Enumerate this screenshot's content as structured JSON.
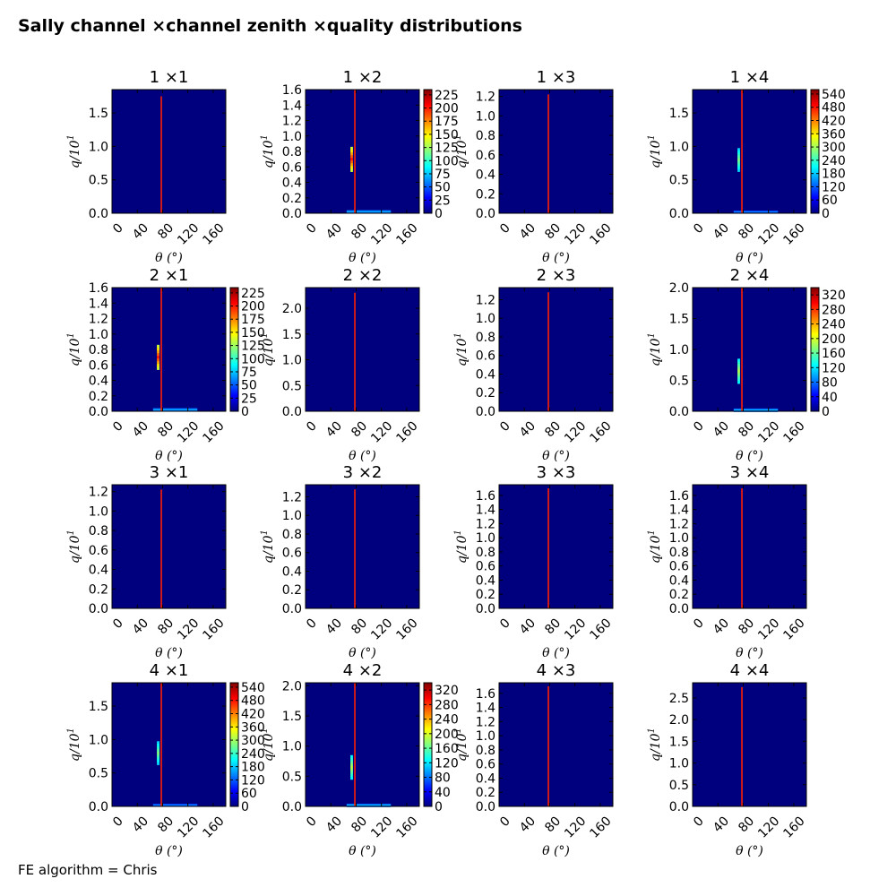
{
  "figure": {
    "title": "Sally channel ×channel zenith ×quality distributions",
    "footnote": "FE algorithm = Chris"
  },
  "colors": {
    "background": "#00007f",
    "line": "#ff2000",
    "colormap": [
      "#00007f",
      "#0000ff",
      "#0080ff",
      "#00ffff",
      "#80ff80",
      "#ffff00",
      "#ff8000",
      "#ff0000",
      "#7f0000"
    ]
  },
  "chart_data": [
    {
      "type": "heatmap",
      "title": "1 ×1",
      "xlabel": "θ (°)",
      "ylabel": "q/10^1",
      "xlim": [
        0,
        180
      ],
      "xticks": [
        "0",
        "40",
        "80",
        "120",
        "160"
      ],
      "ylim": [
        0,
        1.85
      ],
      "yticks": [
        "0.0",
        "0.5",
        "1.0",
        "1.5"
      ],
      "line_x": 78,
      "line_top": 1.75,
      "colorbar": null,
      "blobs": []
    },
    {
      "type": "heatmap",
      "title": "1 ×2",
      "xlabel": "θ (°)",
      "ylabel": "q/10^1",
      "xlim": [
        0,
        180
      ],
      "xticks": [
        "0",
        "40",
        "80",
        "120",
        "160"
      ],
      "ylim": [
        0,
        1.6
      ],
      "yticks": [
        "0.0",
        "0.2",
        "0.4",
        "0.6",
        "0.8",
        "1.0",
        "1.2",
        "1.4",
        "1.6"
      ],
      "line_x": 78,
      "line_top": 1.6,
      "colorbar": {
        "ticks": [
          "0",
          "25",
          "50",
          "75",
          "100",
          "125",
          "150",
          "175",
          "200",
          "225"
        ],
        "max": 235
      },
      "blobs": [
        {
          "x": 73,
          "y": 0.7,
          "w": 4,
          "h": 0.32,
          "v": 0.85
        },
        {
          "x": 100,
          "y": 0.02,
          "w": 70,
          "h": 0.04,
          "v": 0.3
        }
      ]
    },
    {
      "type": "heatmap",
      "title": "1 ×3",
      "xlabel": "θ (°)",
      "ylabel": "q/10^1",
      "xlim": [
        0,
        180
      ],
      "xticks": [
        "0",
        "40",
        "80",
        "120",
        "160"
      ],
      "ylim": [
        0,
        1.27
      ],
      "yticks": [
        "0.0",
        "0.2",
        "0.4",
        "0.6",
        "0.8",
        "1.0",
        "1.2"
      ],
      "line_x": 78,
      "line_top": 1.22,
      "colorbar": null,
      "blobs": []
    },
    {
      "type": "heatmap",
      "title": "1 ×4",
      "xlabel": "θ (°)",
      "ylabel": "q/10^1",
      "xlim": [
        0,
        180
      ],
      "xticks": [
        "0",
        "40",
        "80",
        "120",
        "160"
      ],
      "ylim": [
        0,
        1.85
      ],
      "yticks": [
        "0.0",
        "0.5",
        "1.0",
        "1.5"
      ],
      "line_x": 78,
      "line_top": 1.85,
      "colorbar": {
        "ticks": [
          "0",
          "60",
          "120",
          "180",
          "240",
          "300",
          "360",
          "420",
          "480",
          "540"
        ],
        "max": 560
      },
      "blobs": [
        {
          "x": 73,
          "y": 0.8,
          "w": 4,
          "h": 0.35,
          "v": 0.5
        },
        {
          "x": 100,
          "y": 0.02,
          "w": 70,
          "h": 0.04,
          "v": 0.25
        }
      ]
    },
    {
      "type": "heatmap",
      "title": "2 ×1",
      "xlabel": "θ (°)",
      "ylabel": "q/10^1",
      "xlim": [
        0,
        180
      ],
      "xticks": [
        "0",
        "40",
        "80",
        "120",
        "160"
      ],
      "ylim": [
        0,
        1.6
      ],
      "yticks": [
        "0.0",
        "0.2",
        "0.4",
        "0.6",
        "0.8",
        "1.0",
        "1.2",
        "1.4",
        "1.6"
      ],
      "line_x": 78,
      "line_top": 1.6,
      "colorbar": {
        "ticks": [
          "0",
          "25",
          "50",
          "75",
          "100",
          "125",
          "150",
          "175",
          "200",
          "225"
        ],
        "max": 235
      },
      "blobs": [
        {
          "x": 73,
          "y": 0.7,
          "w": 4,
          "h": 0.32,
          "v": 0.85
        },
        {
          "x": 100,
          "y": 0.02,
          "w": 70,
          "h": 0.04,
          "v": 0.3
        }
      ]
    },
    {
      "type": "heatmap",
      "title": "2 ×2",
      "xlabel": "θ (°)",
      "ylabel": "q/10^1",
      "xlim": [
        0,
        180
      ],
      "xticks": [
        "0",
        "40",
        "80",
        "120",
        "160"
      ],
      "ylim": [
        0,
        2.4
      ],
      "yticks": [
        "0.0",
        "0.5",
        "1.0",
        "1.5",
        "2.0"
      ],
      "line_x": 78,
      "line_top": 2.3,
      "colorbar": null,
      "blobs": []
    },
    {
      "type": "heatmap",
      "title": "2 ×3",
      "xlabel": "θ (°)",
      "ylabel": "q/10^1",
      "xlim": [
        0,
        180
      ],
      "xticks": [
        "0",
        "40",
        "80",
        "120",
        "160"
      ],
      "ylim": [
        0,
        1.33
      ],
      "yticks": [
        "0.0",
        "0.2",
        "0.4",
        "0.6",
        "0.8",
        "1.0",
        "1.2"
      ],
      "line_x": 78,
      "line_top": 1.28,
      "colorbar": null,
      "blobs": []
    },
    {
      "type": "heatmap",
      "title": "2 ×4",
      "xlabel": "θ (°)",
      "ylabel": "q/10^1",
      "xlim": [
        0,
        180
      ],
      "xticks": [
        "0",
        "40",
        "80",
        "120",
        "160"
      ],
      "ylim": [
        0,
        2.0
      ],
      "yticks": [
        "0.0",
        "0.5",
        "1.0",
        "1.5",
        "2.0"
      ],
      "line_x": 78,
      "line_top": 2.0,
      "colorbar": {
        "ticks": [
          "0",
          "40",
          "80",
          "120",
          "160",
          "200",
          "240",
          "280",
          "320"
        ],
        "max": 340
      },
      "blobs": [
        {
          "x": 73,
          "y": 0.65,
          "w": 4,
          "h": 0.4,
          "v": 0.55
        },
        {
          "x": 100,
          "y": 0.02,
          "w": 70,
          "h": 0.05,
          "v": 0.3
        }
      ]
    },
    {
      "type": "heatmap",
      "title": "3 ×1",
      "xlabel": "θ (°)",
      "ylabel": "q/10^1",
      "xlim": [
        0,
        180
      ],
      "xticks": [
        "0",
        "40",
        "80",
        "120",
        "160"
      ],
      "ylim": [
        0,
        1.27
      ],
      "yticks": [
        "0.0",
        "0.2",
        "0.4",
        "0.6",
        "0.8",
        "1.0",
        "1.2"
      ],
      "line_x": 78,
      "line_top": 1.22,
      "colorbar": null,
      "blobs": []
    },
    {
      "type": "heatmap",
      "title": "3 ×2",
      "xlabel": "θ (°)",
      "ylabel": "q/10^1",
      "xlim": [
        0,
        180
      ],
      "xticks": [
        "0",
        "40",
        "80",
        "120",
        "160"
      ],
      "ylim": [
        0,
        1.33
      ],
      "yticks": [
        "0.0",
        "0.2",
        "0.4",
        "0.6",
        "0.8",
        "1.0",
        "1.2"
      ],
      "line_x": 78,
      "line_top": 1.28,
      "colorbar": null,
      "blobs": []
    },
    {
      "type": "heatmap",
      "title": "3 ×3",
      "xlabel": "θ (°)",
      "ylabel": "q/10^1",
      "xlim": [
        0,
        180
      ],
      "xticks": [
        "0",
        "40",
        "80",
        "120",
        "160"
      ],
      "ylim": [
        0,
        1.75
      ],
      "yticks": [
        "0.0",
        "0.2",
        "0.4",
        "0.6",
        "0.8",
        "1.0",
        "1.2",
        "1.4",
        "1.6"
      ],
      "line_x": 78,
      "line_top": 1.7,
      "colorbar": null,
      "blobs": []
    },
    {
      "type": "heatmap",
      "title": "3 ×4",
      "xlabel": "θ (°)",
      "ylabel": "q/10^1",
      "xlim": [
        0,
        180
      ],
      "xticks": [
        "0",
        "40",
        "80",
        "120",
        "160"
      ],
      "ylim": [
        0,
        1.75
      ],
      "yticks": [
        "0.0",
        "0.2",
        "0.4",
        "0.6",
        "0.8",
        "1.0",
        "1.2",
        "1.4",
        "1.6"
      ],
      "line_x": 78,
      "line_top": 1.7,
      "colorbar": null,
      "blobs": []
    },
    {
      "type": "heatmap",
      "title": "4 ×1",
      "xlabel": "θ (°)",
      "ylabel": "q/10^1",
      "xlim": [
        0,
        180
      ],
      "xticks": [
        "0",
        "40",
        "80",
        "120",
        "160"
      ],
      "ylim": [
        0,
        1.85
      ],
      "yticks": [
        "0.0",
        "0.5",
        "1.0",
        "1.5"
      ],
      "line_x": 78,
      "line_top": 1.85,
      "colorbar": {
        "ticks": [
          "0",
          "60",
          "120",
          "180",
          "240",
          "300",
          "360",
          "420",
          "480",
          "540"
        ],
        "max": 560
      },
      "blobs": [
        {
          "x": 73,
          "y": 0.8,
          "w": 4,
          "h": 0.35,
          "v": 0.5
        },
        {
          "x": 100,
          "y": 0.02,
          "w": 70,
          "h": 0.04,
          "v": 0.25
        }
      ]
    },
    {
      "type": "heatmap",
      "title": "4 ×2",
      "xlabel": "θ (°)",
      "ylabel": "q/10^1",
      "xlim": [
        0,
        180
      ],
      "xticks": [
        "0",
        "40",
        "80",
        "120",
        "160"
      ],
      "ylim": [
        0,
        2.05
      ],
      "yticks": [
        "0.0",
        "0.5",
        "1.0",
        "1.5",
        "2.0"
      ],
      "line_x": 78,
      "line_top": 2.05,
      "colorbar": {
        "ticks": [
          "0",
          "40",
          "80",
          "120",
          "160",
          "200",
          "240",
          "280",
          "320"
        ],
        "max": 340
      },
      "blobs": [
        {
          "x": 73,
          "y": 0.65,
          "w": 4,
          "h": 0.4,
          "v": 0.55
        },
        {
          "x": 100,
          "y": 0.02,
          "w": 70,
          "h": 0.05,
          "v": 0.3
        }
      ]
    },
    {
      "type": "heatmap",
      "title": "4 ×3",
      "xlabel": "θ (°)",
      "ylabel": "q/10^1",
      "xlim": [
        0,
        180
      ],
      "xticks": [
        "0",
        "40",
        "80",
        "120",
        "160"
      ],
      "ylim": [
        0,
        1.75
      ],
      "yticks": [
        "0.0",
        "0.2",
        "0.4",
        "0.6",
        "0.8",
        "1.0",
        "1.2",
        "1.4",
        "1.6"
      ],
      "line_x": 78,
      "line_top": 1.7,
      "colorbar": null,
      "blobs": []
    },
    {
      "type": "heatmap",
      "title": "4 ×4",
      "xlabel": "θ (°)",
      "ylabel": "q/10^1",
      "xlim": [
        0,
        180
      ],
      "xticks": [
        "0",
        "40",
        "80",
        "120",
        "160"
      ],
      "ylim": [
        0,
        2.85
      ],
      "yticks": [
        "0.0",
        "0.5",
        "1.0",
        "1.5",
        "2.0",
        "2.5"
      ],
      "line_x": 78,
      "line_top": 2.75,
      "colorbar": null,
      "blobs": []
    }
  ]
}
